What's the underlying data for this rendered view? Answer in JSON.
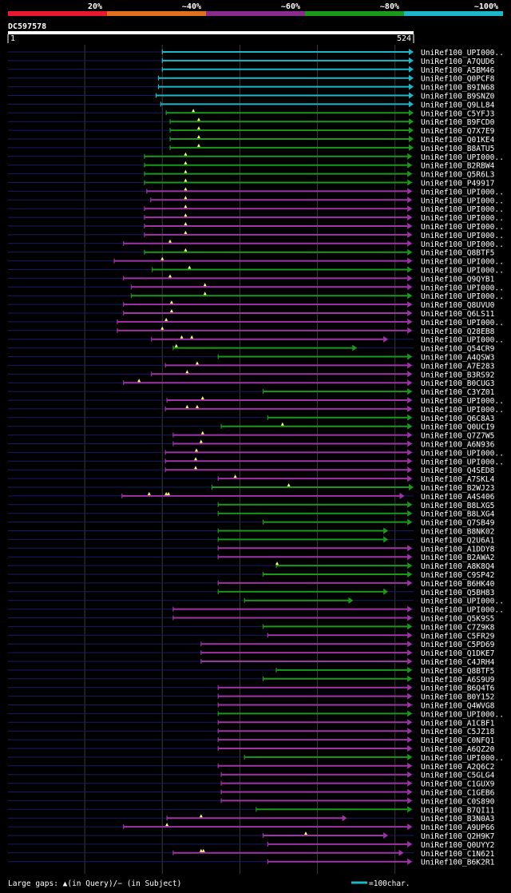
{
  "chart_data": {
    "type": "alignment",
    "title": "DC597578",
    "query_range": [
      1,
      524
    ],
    "axis_start_label": "1",
    "axis_end_label": "524",
    "identity_legend": [
      {
        "label": "20%",
        "color": "#e8182e"
      },
      {
        "label": "~40%",
        "color": "#e2711f"
      },
      {
        "label": "~60%",
        "color": "#8a2b8e"
      },
      {
        "label": "~80%",
        "color": "#1a9a1a"
      },
      {
        "label": "~100%",
        "color": "#1ab8c8"
      }
    ],
    "gaps_legend": "Large gaps: ▲(in Query)/− (in Subject)",
    "scale_legend": "=100char.",
    "hits": [
      {
        "name": "UniRef100_UPI000..",
        "start": 200,
        "end": 524,
        "color": "cyan",
        "marks": []
      },
      {
        "name": "UniRef100_A7QUD6",
        "start": 200,
        "end": 524,
        "color": "cyan",
        "marks": []
      },
      {
        "name": "UniRef100_A5BM46",
        "start": 200,
        "end": 524,
        "color": "cyan",
        "marks": []
      },
      {
        "name": "UniRef100_Q0PCF8",
        "start": 195,
        "end": 526,
        "color": "cyan",
        "marks": []
      },
      {
        "name": "UniRef100_B9IN68",
        "start": 195,
        "end": 526,
        "color": "cyan",
        "marks": []
      },
      {
        "name": "UniRef100_B9SNZ0",
        "start": 192,
        "end": 526,
        "color": "cyan",
        "marks": []
      },
      {
        "name": "UniRef100_Q9LL84",
        "start": 198,
        "end": 526,
        "color": "cyan",
        "marks": []
      },
      {
        "name": "UniRef100_C5YFJ3",
        "start": 205,
        "end": 524,
        "color": "green",
        "marks": [
          240
        ]
      },
      {
        "name": "UniRef100_B9FCD0",
        "start": 210,
        "end": 524,
        "color": "green",
        "marks": [
          247
        ]
      },
      {
        "name": "UniRef100_Q7X7E9",
        "start": 210,
        "end": 524,
        "color": "green",
        "marks": [
          247
        ]
      },
      {
        "name": "UniRef100_Q01KE4",
        "start": 210,
        "end": 524,
        "color": "green",
        "marks": [
          247
        ]
      },
      {
        "name": "UniRef100_B8ATU5",
        "start": 210,
        "end": 524,
        "color": "green",
        "marks": [
          247
        ]
      },
      {
        "name": "UniRef100_UPI000..",
        "start": 177,
        "end": 516,
        "color": "green",
        "marks": [
          230
        ]
      },
      {
        "name": "UniRef100_B2RBW4",
        "start": 177,
        "end": 516,
        "color": "green",
        "marks": [
          230
        ]
      },
      {
        "name": "UniRef100_Q5R6L3",
        "start": 177,
        "end": 516,
        "color": "green",
        "marks": [
          230
        ]
      },
      {
        "name": "UniRef100_P49917",
        "start": 177,
        "end": 516,
        "color": "green",
        "marks": [
          230
        ]
      },
      {
        "name": "UniRef100_UPI000..",
        "start": 180,
        "end": 516,
        "color": "purple",
        "marks": [
          230
        ]
      },
      {
        "name": "UniRef100_UPI000..",
        "start": 185,
        "end": 516,
        "color": "purple",
        "marks": [
          230
        ]
      },
      {
        "name": "UniRef100_UPI000..",
        "start": 177,
        "end": 516,
        "color": "purple",
        "marks": [
          230
        ]
      },
      {
        "name": "UniRef100_UPI000..",
        "start": 177,
        "end": 516,
        "color": "purple",
        "marks": [
          230
        ]
      },
      {
        "name": "UniRef100_UPI000..",
        "start": 177,
        "end": 516,
        "color": "purple",
        "marks": [
          230
        ]
      },
      {
        "name": "UniRef100_UPI000..",
        "start": 177,
        "end": 516,
        "color": "purple",
        "marks": [
          230
        ]
      },
      {
        "name": "UniRef100_UPI000..",
        "start": 150,
        "end": 516,
        "color": "purple",
        "marks": [
          210
        ]
      },
      {
        "name": "UniRef100_Q8BTF5",
        "start": 177,
        "end": 516,
        "color": "green",
        "marks": [
          230
        ]
      },
      {
        "name": "UniRef100_UPI000..",
        "start": 138,
        "end": 516,
        "color": "purple",
        "marks": [
          200
        ]
      },
      {
        "name": "UniRef100_UPI000..",
        "start": 187,
        "end": 516,
        "color": "green",
        "marks": [
          235
        ]
      },
      {
        "name": "UniRef100_Q9QYB1",
        "start": 150,
        "end": 516,
        "color": "purple",
        "marks": [
          210
        ]
      },
      {
        "name": "UniRef100_UPI000..",
        "start": 160,
        "end": 516,
        "color": "purple",
        "marks": [
          255
        ]
      },
      {
        "name": "UniRef100_UPI000..",
        "start": 160,
        "end": 516,
        "color": "green",
        "marks": [
          255
        ]
      },
      {
        "name": "UniRef100_Q8UVU0",
        "start": 150,
        "end": 516,
        "color": "purple",
        "marks": [
          212
        ]
      },
      {
        "name": "UniRef100_Q6LS11",
        "start": 150,
        "end": 516,
        "color": "purple",
        "marks": [
          212
        ]
      },
      {
        "name": "UniRef100_UPI000..",
        "start": 142,
        "end": 516,
        "color": "purple",
        "marks": [
          205
        ]
      },
      {
        "name": "UniRef100_Q28EB8",
        "start": 142,
        "end": 516,
        "color": "purple",
        "marks": [
          200
        ]
      },
      {
        "name": "UniRef100_UPI000..",
        "start": 186,
        "end": 485,
        "color": "purple",
        "marks": [
          225,
          238
        ]
      },
      {
        "name": "UniRef100_Q54CR9",
        "start": 214,
        "end": 445,
        "color": "green",
        "marks": [
          218
        ]
      },
      {
        "name": "UniRef100_A4QSW3",
        "start": 272,
        "end": 516,
        "color": "green",
        "marks": []
      },
      {
        "name": "UniRef100_A7E283",
        "start": 204,
        "end": 516,
        "color": "purple",
        "marks": [
          245
        ]
      },
      {
        "name": "UniRef100_B3RS92",
        "start": 186,
        "end": 516,
        "color": "purple",
        "marks": [
          232
        ]
      },
      {
        "name": "UniRef100_B0CUG3",
        "start": 150,
        "end": 516,
        "color": "purple",
        "marks": [
          170
        ]
      },
      {
        "name": "UniRef100_C3YZ01",
        "start": 330,
        "end": 516,
        "color": "green",
        "marks": []
      },
      {
        "name": "UniRef100_UPI000..",
        "start": 206,
        "end": 516,
        "color": "purple",
        "marks": [
          252
        ]
      },
      {
        "name": "UniRef100_UPI000..",
        "start": 204,
        "end": 516,
        "color": "purple",
        "marks": [
          232,
          245
        ]
      },
      {
        "name": "UniRef100_Q6C8A3",
        "start": 336,
        "end": 516,
        "color": "green",
        "marks": []
      },
      {
        "name": "UniRef100_Q0UCI9",
        "start": 276,
        "end": 516,
        "color": "green",
        "marks": [
          355
        ]
      },
      {
        "name": "UniRef100_Q7Z7W5",
        "start": 214,
        "end": 516,
        "color": "purple",
        "marks": [
          252
        ]
      },
      {
        "name": "UniRef100_A6N936",
        "start": 214,
        "end": 516,
        "color": "purple",
        "marks": [
          250
        ]
      },
      {
        "name": "UniRef100_UPI000..",
        "start": 204,
        "end": 516,
        "color": "purple",
        "marks": [
          244
        ]
      },
      {
        "name": "UniRef100_UPI000..",
        "start": 204,
        "end": 516,
        "color": "purple",
        "marks": [
          243
        ]
      },
      {
        "name": "UniRef100_Q4SED8",
        "start": 204,
        "end": 516,
        "color": "purple",
        "marks": [
          243
        ]
      },
      {
        "name": "UniRef100_A7SKL4",
        "start": 272,
        "end": 516,
        "color": "purple",
        "marks": [
          294
        ]
      },
      {
        "name": "UniRef100_B2WJ23",
        "start": 264,
        "end": 520,
        "color": "green",
        "marks": [
          363
        ]
      },
      {
        "name": "UniRef100_A4S406",
        "start": 148,
        "end": 506,
        "color": "purple",
        "marks": [
          183,
          205,
          208
        ]
      },
      {
        "name": "UniRef100_B8LXG5",
        "start": 272,
        "end": 516,
        "color": "green",
        "marks": []
      },
      {
        "name": "UniRef100_B8LXG4",
        "start": 272,
        "end": 516,
        "color": "green",
        "marks": []
      },
      {
        "name": "UniRef100_Q7SB49",
        "start": 330,
        "end": 516,
        "color": "green",
        "marks": []
      },
      {
        "name": "UniRef100_B8NK02",
        "start": 272,
        "end": 485,
        "color": "green",
        "marks": []
      },
      {
        "name": "UniRef100_Q2U6A1",
        "start": 272,
        "end": 485,
        "color": "green",
        "marks": []
      },
      {
        "name": "UniRef100_A1DDY8",
        "start": 272,
        "end": 516,
        "color": "purple",
        "marks": []
      },
      {
        "name": "UniRef100_B2AWA2",
        "start": 272,
        "end": 516,
        "color": "purple",
        "marks": []
      },
      {
        "name": "UniRef100_A8K8Q4",
        "start": 347,
        "end": 516,
        "color": "green",
        "marks": [
          348
        ]
      },
      {
        "name": "UniRef100_C9SP42",
        "start": 330,
        "end": 516,
        "color": "green",
        "marks": []
      },
      {
        "name": "UniRef100_B6HK40",
        "start": 272,
        "end": 516,
        "color": "purple",
        "marks": []
      },
      {
        "name": "UniRef100_Q5BH83",
        "start": 272,
        "end": 485,
        "color": "green",
        "marks": []
      },
      {
        "name": "UniRef100_UPI000..",
        "start": 306,
        "end": 440,
        "color": "green",
        "marks": []
      },
      {
        "name": "UniRef100_UPI000..",
        "start": 214,
        "end": 516,
        "color": "purple",
        "marks": []
      },
      {
        "name": "UniRef100_Q5K9S5",
        "start": 214,
        "end": 516,
        "color": "purple",
        "marks": []
      },
      {
        "name": "UniRef100_C7Z9K8",
        "start": 330,
        "end": 516,
        "color": "green",
        "marks": []
      },
      {
        "name": "UniRef100_C5FR29",
        "start": 336,
        "end": 516,
        "color": "purple",
        "marks": []
      },
      {
        "name": "UniRef100_C5PD69",
        "start": 250,
        "end": 516,
        "color": "purple",
        "marks": []
      },
      {
        "name": "UniRef100_Q1DKE7",
        "start": 250,
        "end": 516,
        "color": "purple",
        "marks": []
      },
      {
        "name": "UniRef100_C4JRH4",
        "start": 250,
        "end": 516,
        "color": "purple",
        "marks": []
      },
      {
        "name": "UniRef100_Q8BTF5",
        "start": 347,
        "end": 516,
        "color": "green",
        "marks": []
      },
      {
        "name": "UniRef100_A6S9U9",
        "start": 330,
        "end": 516,
        "color": "green",
        "marks": []
      },
      {
        "name": "UniRef100_B6Q4T6",
        "start": 272,
        "end": 516,
        "color": "purple",
        "marks": []
      },
      {
        "name": "UniRef100_B0Y152",
        "start": 272,
        "end": 516,
        "color": "purple",
        "marks": []
      },
      {
        "name": "UniRef100_Q4WVG8",
        "start": 272,
        "end": 516,
        "color": "purple",
        "marks": []
      },
      {
        "name": "UniRef100_UPI000..",
        "start": 272,
        "end": 516,
        "color": "green",
        "marks": []
      },
      {
        "name": "UniRef100_A1CBF1",
        "start": 272,
        "end": 516,
        "color": "purple",
        "marks": []
      },
      {
        "name": "UniRef100_C5JZ18",
        "start": 272,
        "end": 516,
        "color": "purple",
        "marks": []
      },
      {
        "name": "UniRef100_C0NFQ1",
        "start": 272,
        "end": 516,
        "color": "purple",
        "marks": []
      },
      {
        "name": "UniRef100_A6QZ20",
        "start": 272,
        "end": 516,
        "color": "purple",
        "marks": []
      },
      {
        "name": "UniRef100_UPI000..",
        "start": 306,
        "end": 516,
        "color": "green",
        "marks": []
      },
      {
        "name": "UniRef100_A2Q6C2",
        "start": 272,
        "end": 516,
        "color": "purple",
        "marks": []
      },
      {
        "name": "UniRef100_C5GLG4",
        "start": 276,
        "end": 516,
        "color": "purple",
        "marks": []
      },
      {
        "name": "UniRef100_C1GUX9",
        "start": 276,
        "end": 516,
        "color": "purple",
        "marks": []
      },
      {
        "name": "UniRef100_C1GEB6",
        "start": 276,
        "end": 516,
        "color": "purple",
        "marks": []
      },
      {
        "name": "UniRef100_C0S890",
        "start": 276,
        "end": 516,
        "color": "purple",
        "marks": []
      },
      {
        "name": "UniRef100_B7QI11",
        "start": 321,
        "end": 516,
        "color": "green",
        "marks": []
      },
      {
        "name": "UniRef100_B3N0A3",
        "start": 206,
        "end": 432,
        "color": "purple",
        "marks": [
          250
        ]
      },
      {
        "name": "UniRef100_A9UP66",
        "start": 150,
        "end": 516,
        "color": "purple",
        "marks": [
          206
        ]
      },
      {
        "name": "UniRef100_Q2H9K7",
        "start": 330,
        "end": 485,
        "color": "purple",
        "marks": [
          385
        ]
      },
      {
        "name": "UniRef100_Q0UYY2",
        "start": 336,
        "end": 516,
        "color": "purple",
        "marks": []
      },
      {
        "name": "UniRef100_C1N621",
        "start": 214,
        "end": 505,
        "color": "purple",
        "marks": [
          250,
          253
        ]
      },
      {
        "name": "UniRef100_B6K2R1",
        "start": 336,
        "end": 516,
        "color": "purple",
        "marks": []
      }
    ]
  }
}
